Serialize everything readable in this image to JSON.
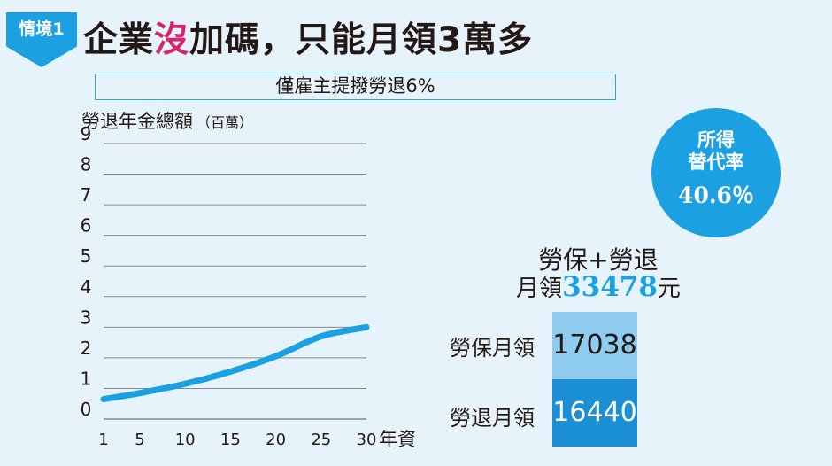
{
  "tag": {
    "text": "情境1"
  },
  "title": {
    "part1": "企業",
    "highlight": "沒",
    "part2": "加碼，只能月領3萬多"
  },
  "subtitle": "僅雇主提撥勞退6%",
  "chart_data": {
    "type": "line",
    "ylabel": "勞退年金總額",
    "yunit": "（百萬）",
    "xlabel": "年資",
    "ylim": [
      0,
      9
    ],
    "yticks": [
      0,
      1,
      2,
      3,
      4,
      5,
      6,
      7,
      8,
      9
    ],
    "xlim": [
      1,
      30
    ],
    "xticks": [
      1,
      5,
      10,
      15,
      20,
      25,
      30
    ],
    "grid": true,
    "series": [
      {
        "color": "#1ba1e2",
        "x": [
          1,
          5,
          10,
          15,
          20,
          25,
          30
        ],
        "y": [
          0.65,
          0.85,
          1.15,
          1.55,
          2.05,
          2.7,
          3.0
        ]
      }
    ]
  },
  "rate": {
    "label_line1": "所得",
    "label_line2": "替代率",
    "value": "40.6％"
  },
  "combined": {
    "label": "勞保+勞退",
    "prefix": "月領",
    "total": "33478",
    "suffix": "元"
  },
  "breakdown": [
    {
      "label": "勞保月領",
      "value": "17038"
    },
    {
      "label": "勞退月領",
      "value": "16440"
    }
  ],
  "colors": {
    "background": "#e6f3fb",
    "accent": "#1ba1e2",
    "highlight": "#d6246e",
    "bar_light": "#8fcdf0",
    "bar_dark": "#1a8fd6"
  }
}
